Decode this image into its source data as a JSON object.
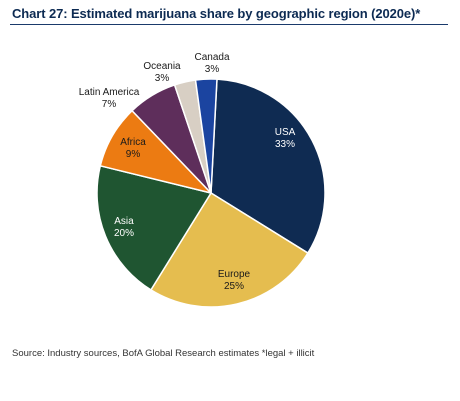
{
  "chart_data": {
    "type": "pie",
    "title": "Chart 27: Estimated marijuana share by geographic region (2020e)*",
    "slices": [
      {
        "label": "USA",
        "value": 33,
        "value_label": "33%",
        "color": "#0f2b52",
        "text_color": "#ffffff"
      },
      {
        "label": "Europe",
        "value": 25,
        "value_label": "25%",
        "color": "#e5bd4f",
        "text_color": "#1a1a1a"
      },
      {
        "label": "Asia",
        "value": 20,
        "value_label": "20%",
        "color": "#1f5531",
        "text_color": "#ffffff"
      },
      {
        "label": "Africa",
        "value": 9,
        "value_label": "9%",
        "color": "#ec7b12",
        "text_color": "#1a1a1a"
      },
      {
        "label": "Latin America",
        "value": 7,
        "value_label": "7%",
        "color": "#5e2e5b",
        "text_color": "#1a1a1a"
      },
      {
        "label": "Oceania",
        "value": 3,
        "value_label": "3%",
        "color": "#d8cfc4",
        "text_color": "#1a1a1a"
      },
      {
        "label": "Canada",
        "value": 3,
        "value_label": "3%",
        "color": "#1b44a0",
        "text_color": "#1a1a1a"
      }
    ],
    "source": "Source: Industry sources, BofA Global Research estimates  *legal + illicit"
  }
}
